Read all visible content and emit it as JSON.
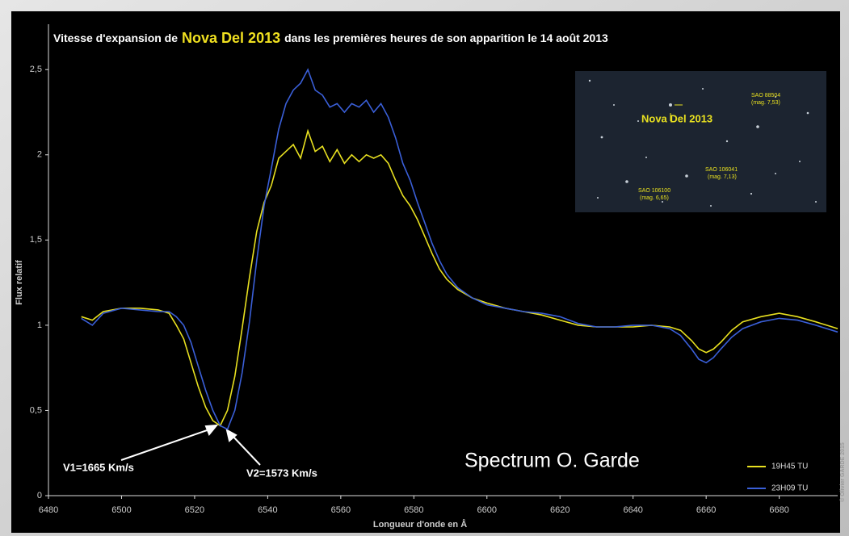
{
  "chart_data": {
    "type": "line",
    "title_parts": [
      "Vitesse d'expansion de",
      "Nova Del 2013",
      "dans les premières heures de son apparition le 14 août 2013"
    ],
    "xlabel": "Longueur d'onde en Å",
    "ylabel": "Flux relatif",
    "annotations": [
      "V1=1665 Km/s",
      "V2=1573 Km/s",
      "Spectrum O. Garde",
      "© Olivier GARDE 2015"
    ],
    "inset_labels": [
      "Nova Del 2013",
      "SAO 88504",
      "(mag. 7,53)",
      "SAO 106041",
      "(mag. 7,13)",
      "SAO 106100",
      "(mag. 6,65)"
    ],
    "legend": "lower right",
    "xlim": [
      6480,
      6696
    ],
    "ylim": [
      0,
      2.7
    ],
    "xticks": [
      6480,
      6500,
      6520,
      6540,
      6560,
      6580,
      6600,
      6620,
      6640,
      6660,
      6680
    ],
    "yticks": [
      0,
      {
        "value": 0.5,
        "label": "0,5"
      },
      1,
      {
        "value": 1.5,
        "label": "1,5"
      },
      2,
      {
        "value": 2.5,
        "label": "2,5"
      }
    ],
    "x": [
      6489,
      6492,
      6495,
      6500,
      6505,
      6510,
      6513,
      6515,
      6517,
      6519,
      6521,
      6523,
      6525,
      6527,
      6529,
      6531,
      6533,
      6535,
      6537,
      6539,
      6541,
      6543,
      6545,
      6547,
      6549,
      6551,
      6553,
      6555,
      6557,
      6559,
      6561,
      6563,
      6565,
      6567,
      6569,
      6571,
      6573,
      6575,
      6577,
      6579,
      6581,
      6583,
      6585,
      6587,
      6589,
      6592,
      6596,
      6600,
      6605,
      6610,
      6615,
      6620,
      6625,
      6630,
      6635,
      6640,
      6645,
      6650,
      6653,
      6656,
      6658,
      6660,
      6662,
      6664,
      6667,
      6670,
      6675,
      6680,
      6685,
      6690,
      6696
    ],
    "series": [
      {
        "name": "19H45 TU",
        "color": "#e8e020",
        "values": [
          1.05,
          1.03,
          1.08,
          1.1,
          1.1,
          1.09,
          1.07,
          1.0,
          0.92,
          0.78,
          0.64,
          0.52,
          0.44,
          0.41,
          0.5,
          0.7,
          0.98,
          1.28,
          1.55,
          1.72,
          1.82,
          1.98,
          2.02,
          2.06,
          1.98,
          2.14,
          2.02,
          2.05,
          1.96,
          2.03,
          1.95,
          2.0,
          1.96,
          2.0,
          1.98,
          2.0,
          1.95,
          1.85,
          1.76,
          1.7,
          1.62,
          1.52,
          1.42,
          1.33,
          1.27,
          1.21,
          1.16,
          1.13,
          1.1,
          1.08,
          1.06,
          1.03,
          1.0,
          0.99,
          0.99,
          0.99,
          1.0,
          0.99,
          0.97,
          0.91,
          0.86,
          0.84,
          0.86,
          0.9,
          0.97,
          1.02,
          1.05,
          1.07,
          1.05,
          1.02,
          0.98
        ]
      },
      {
        "name": "23H09 TU",
        "color": "#3a5fd8",
        "values": [
          1.04,
          1.0,
          1.07,
          1.1,
          1.09,
          1.08,
          1.08,
          1.05,
          1.0,
          0.9,
          0.76,
          0.62,
          0.5,
          0.41,
          0.39,
          0.5,
          0.72,
          1.02,
          1.38,
          1.7,
          1.92,
          2.15,
          2.3,
          2.38,
          2.42,
          2.5,
          2.38,
          2.35,
          2.28,
          2.3,
          2.25,
          2.3,
          2.28,
          2.32,
          2.25,
          2.3,
          2.22,
          2.1,
          1.95,
          1.85,
          1.72,
          1.6,
          1.48,
          1.38,
          1.3,
          1.22,
          1.16,
          1.12,
          1.1,
          1.08,
          1.07,
          1.05,
          1.01,
          0.99,
          0.99,
          1.0,
          1.0,
          0.98,
          0.94,
          0.86,
          0.8,
          0.78,
          0.81,
          0.86,
          0.93,
          0.98,
          1.02,
          1.04,
          1.03,
          1.0,
          0.96
        ]
      }
    ]
  }
}
